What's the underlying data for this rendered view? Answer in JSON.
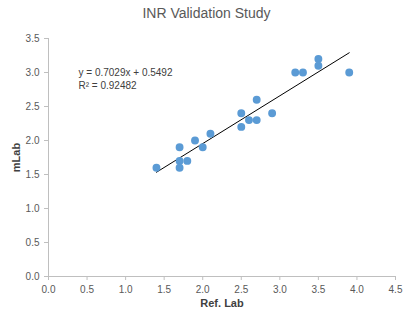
{
  "chart_data": {
    "type": "scatter",
    "title": "INR Validation Study",
    "x_label": "Ref. Lab",
    "y_label": "mLab",
    "x": [
      1.4,
      1.7,
      1.7,
      1.7,
      1.8,
      1.9,
      2.0,
      2.1,
      2.5,
      2.5,
      2.6,
      2.7,
      2.7,
      2.9,
      3.2,
      3.3,
      3.5,
      3.5,
      3.9
    ],
    "values": [
      1.6,
      1.9,
      1.7,
      1.6,
      1.7,
      2.0,
      1.9,
      2.1,
      2.4,
      2.2,
      2.3,
      2.6,
      2.3,
      2.4,
      3.0,
      3.0,
      3.2,
      3.1,
      3.0
    ],
    "color": "#5b9bd5",
    "marker": "circle",
    "trendline": {
      "x": [
        1.4,
        3.9
      ],
      "values": [
        1.533,
        3.29
      ],
      "color": "#000000",
      "line_style": "solid"
    },
    "annotations": [
      "y = 0.7029x + 0.5492",
      "R² = 0.92482"
    ],
    "xlim": [
      0,
      4.5
    ],
    "xticks": [
      {
        "value": 0,
        "label": "0.0"
      },
      {
        "value": 0.5,
        "label": "0.5"
      },
      {
        "value": 1,
        "label": "1.0"
      },
      {
        "value": 1.5,
        "label": "1.5"
      },
      {
        "value": 2,
        "label": "2.0"
      },
      {
        "value": 2.5,
        "label": "2.5"
      },
      {
        "value": 3,
        "label": "3.0"
      },
      {
        "value": 3.5,
        "label": "3.5"
      },
      {
        "value": 4,
        "label": "4.0"
      },
      {
        "value": 4.5,
        "label": "4.5"
      }
    ],
    "ylim": [
      0,
      3.5
    ],
    "yticks": [
      {
        "value": 0,
        "label": "0.0"
      },
      {
        "value": 0.5,
        "label": "0.5"
      },
      {
        "value": 1,
        "label": "1.0"
      },
      {
        "value": 1.5,
        "label": "1.5"
      },
      {
        "value": 2,
        "label": "2.0"
      },
      {
        "value": 2.5,
        "label": "2.5"
      },
      {
        "value": 3,
        "label": "3.0"
      },
      {
        "value": 3.5,
        "label": "3.5"
      }
    ],
    "grid": false
  }
}
